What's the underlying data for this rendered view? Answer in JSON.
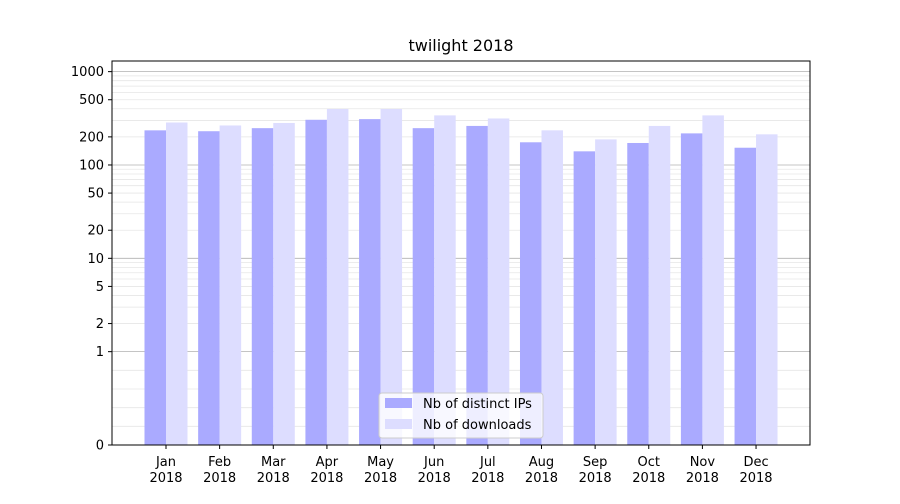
{
  "chart_data": {
    "type": "bar",
    "title": "twilight 2018",
    "xlabel": "",
    "ylabel": "",
    "yscale": "symlog",
    "ylim": [
      0,
      1300
    ],
    "grid": true,
    "legend_position": "lower center",
    "categories": [
      {
        "month": "Jan",
        "year": "2018"
      },
      {
        "month": "Feb",
        "year": "2018"
      },
      {
        "month": "Mar",
        "year": "2018"
      },
      {
        "month": "Apr",
        "year": "2018"
      },
      {
        "month": "May",
        "year": "2018"
      },
      {
        "month": "Jun",
        "year": "2018"
      },
      {
        "month": "Jul",
        "year": "2018"
      },
      {
        "month": "Aug",
        "year": "2018"
      },
      {
        "month": "Sep",
        "year": "2018"
      },
      {
        "month": "Oct",
        "year": "2018"
      },
      {
        "month": "Nov",
        "year": "2018"
      },
      {
        "month": "Dec",
        "year": "2018"
      }
    ],
    "y_ticks": [
      {
        "value": 0,
        "label": "0"
      },
      {
        "value": 1,
        "label": "1"
      },
      {
        "value": 2,
        "label": "2"
      },
      {
        "value": 5,
        "label": "5"
      },
      {
        "value": 10,
        "label": "10"
      },
      {
        "value": 20,
        "label": "20"
      },
      {
        "value": 50,
        "label": "50"
      },
      {
        "value": 100,
        "label": "100"
      },
      {
        "value": 200,
        "label": "200"
      },
      {
        "value": 500,
        "label": "500"
      },
      {
        "value": 1000,
        "label": "1000"
      }
    ],
    "series": [
      {
        "name": "Nb of distinct IPs",
        "color": "#aaaaff",
        "values": [
          235,
          230,
          248,
          305,
          310,
          248,
          262,
          175,
          140,
          172,
          218,
          153
        ]
      },
      {
        "name": "Nb of downloads",
        "color": "#ddddff",
        "values": [
          285,
          265,
          282,
          398,
          398,
          340,
          315,
          235,
          188,
          262,
          340,
          213
        ]
      }
    ]
  }
}
